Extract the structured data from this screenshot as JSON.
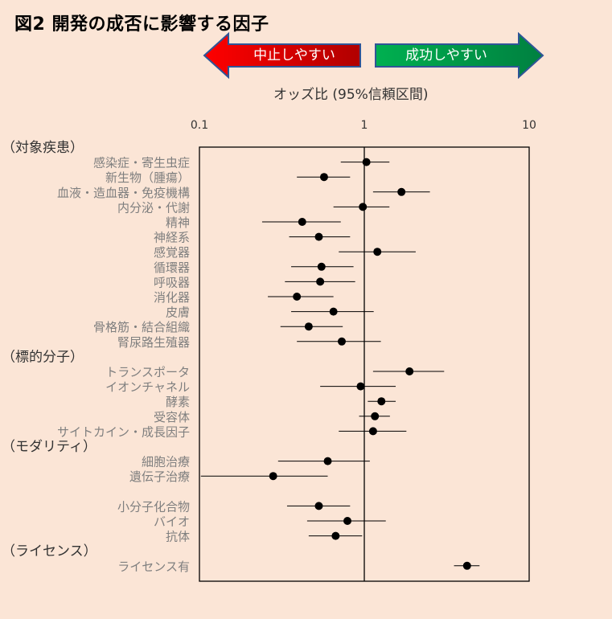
{
  "figure_title": "図2 開発の成否に影響する因子",
  "arrows": {
    "left": {
      "label": "中止しやすい",
      "color_start": "#ff0000",
      "color_end": "#b00000"
    },
    "right": {
      "label": "成功しやすい",
      "color_start": "#00b050",
      "color_end": "#008040"
    }
  },
  "colors": {
    "background": "#fbe5d6",
    "row_label": "#7f7f7f",
    "group_label": "#333333",
    "marker": "#000000"
  },
  "chart_data": {
    "type": "forest",
    "xlabel": "オッズ比 (95%信頼区間)",
    "x_scale": "log",
    "xlim": [
      0.1,
      10
    ],
    "x_ticks": [
      {
        "value": 0.1,
        "label": "0.1"
      },
      {
        "value": 1,
        "label": "1"
      },
      {
        "value": 10,
        "label": "10"
      }
    ],
    "reference_line": 1,
    "groups": [
      {
        "label": "（対象疾患）",
        "row": 0
      },
      {
        "label": "（標的分子）",
        "row": 14
      },
      {
        "label": "（モダリティ）",
        "row": 20
      },
      {
        "label": "（ライセンス）",
        "row": 27
      }
    ],
    "rows": [
      {
        "label": "感染症・寄生虫症",
        "row": 1,
        "or": 1.03,
        "lo": 0.72,
        "hi": 1.42
      },
      {
        "label": "新生物（腫瘍）",
        "row": 2,
        "or": 0.57,
        "lo": 0.39,
        "hi": 0.82
      },
      {
        "label": "血液・造血器・免疫機構",
        "row": 3,
        "or": 1.68,
        "lo": 1.13,
        "hi": 2.5
      },
      {
        "label": "内分泌・代謝",
        "row": 4,
        "or": 0.98,
        "lo": 0.65,
        "hi": 1.42
      },
      {
        "label": "精神",
        "row": 5,
        "or": 0.42,
        "lo": 0.24,
        "hi": 0.72
      },
      {
        "label": "神経系",
        "row": 6,
        "or": 0.53,
        "lo": 0.35,
        "hi": 0.82
      },
      {
        "label": "感覚器",
        "row": 7,
        "or": 1.2,
        "lo": 0.7,
        "hi": 2.05
      },
      {
        "label": "循環器",
        "row": 8,
        "or": 0.55,
        "lo": 0.36,
        "hi": 0.86
      },
      {
        "label": "呼吸器",
        "row": 9,
        "or": 0.54,
        "lo": 0.33,
        "hi": 0.88
      },
      {
        "label": "消化器",
        "row": 10,
        "or": 0.39,
        "lo": 0.26,
        "hi": 0.65
      },
      {
        "label": "皮膚",
        "row": 11,
        "or": 0.65,
        "lo": 0.36,
        "hi": 1.14
      },
      {
        "label": "骨格筋・結合組織",
        "row": 12,
        "or": 0.46,
        "lo": 0.31,
        "hi": 0.74
      },
      {
        "label": "腎尿路生殖器",
        "row": 13,
        "or": 0.73,
        "lo": 0.39,
        "hi": 1.26
      },
      {
        "label": "トランスポータ",
        "row": 15,
        "or": 1.88,
        "lo": 1.13,
        "hi": 3.05
      },
      {
        "label": "イオンチャネル",
        "row": 16,
        "or": 0.95,
        "lo": 0.54,
        "hi": 1.55
      },
      {
        "label": "酵素",
        "row": 17,
        "or": 1.27,
        "lo": 1.05,
        "hi": 1.55
      },
      {
        "label": "受容体",
        "row": 18,
        "or": 1.16,
        "lo": 0.93,
        "hi": 1.43
      },
      {
        "label": "サイトカイン・成長因子",
        "row": 19,
        "or": 1.13,
        "lo": 0.7,
        "hi": 1.8
      },
      {
        "label": "細胞治療",
        "row": 21,
        "or": 0.6,
        "lo": 0.3,
        "hi": 1.08
      },
      {
        "label": "遺伝子治療",
        "row": 22,
        "or": 0.28,
        "lo": 0.102,
        "hi": 0.6
      },
      {
        "label": "小分子化合物",
        "row": 24,
        "or": 0.53,
        "lo": 0.34,
        "hi": 0.82
      },
      {
        "label": "バイオ",
        "row": 25,
        "or": 0.79,
        "lo": 0.45,
        "hi": 1.35
      },
      {
        "label": "抗体",
        "row": 26,
        "or": 0.67,
        "lo": 0.46,
        "hi": 0.97
      },
      {
        "label": "ライセンス有",
        "row": 28,
        "or": 4.2,
        "lo": 3.5,
        "hi": 5.0
      }
    ]
  }
}
